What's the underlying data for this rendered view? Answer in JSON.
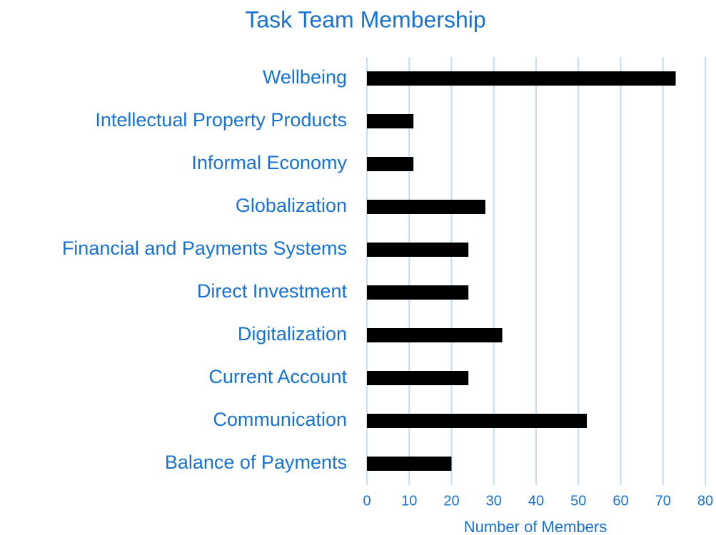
{
  "chart_data": {
    "type": "bar",
    "orientation": "horizontal",
    "title": "Task Team Membership",
    "x_label": "Number of Members",
    "categories": [
      "Balance of Payments",
      "Communication",
      "Current Account",
      "Digitalization",
      "Direct Investment",
      "Financial and Payments Systems",
      "Globalization",
      "Informal Economy",
      "Intellectual Property Products",
      "Wellbeing"
    ],
    "values": [
      20,
      52,
      24,
      32,
      24,
      24,
      28,
      11,
      11,
      73
    ],
    "color": "#000000",
    "xlim": [
      0,
      80
    ],
    "xticks": [
      0,
      10,
      20,
      30,
      40,
      50,
      60,
      70,
      80
    ],
    "grid": true
  }
}
